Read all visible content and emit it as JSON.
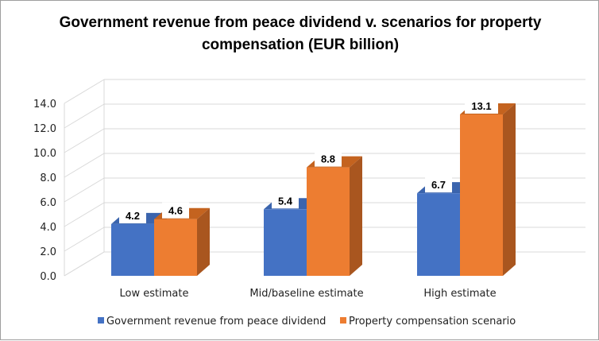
{
  "chart_data": {
    "type": "bar",
    "style": "3d-clustered-column",
    "title": "Government revenue from peace dividend v. scenarios for property compensation (EUR billion)",
    "categories": [
      "Low estimate",
      "Mid/baseline estimate",
      "High estimate"
    ],
    "series": [
      {
        "name": "Government revenue from peace dividend",
        "values": [
          4.2,
          5.4,
          6.7
        ],
        "labels": [
          "4.2",
          "5.4",
          "6.7"
        ],
        "color": "#4472C4",
        "side_color": "#2F5597",
        "top_color": "#3B64AD"
      },
      {
        "name": "Property compensation scenario",
        "values": [
          4.6,
          8.8,
          13.1
        ],
        "labels": [
          "4.6",
          "8.8",
          "13.1"
        ],
        "color": "#ED7D31",
        "side_color": "#A9561F",
        "top_color": "#C4631F"
      }
    ],
    "yticks": [
      "0.0",
      "2.0",
      "4.0",
      "6.0",
      "8.0",
      "10.0",
      "12.0",
      "14.0"
    ],
    "ylim": [
      0,
      14
    ],
    "xlabel": "",
    "ylabel": "",
    "grid": true,
    "legend": "bottom"
  }
}
